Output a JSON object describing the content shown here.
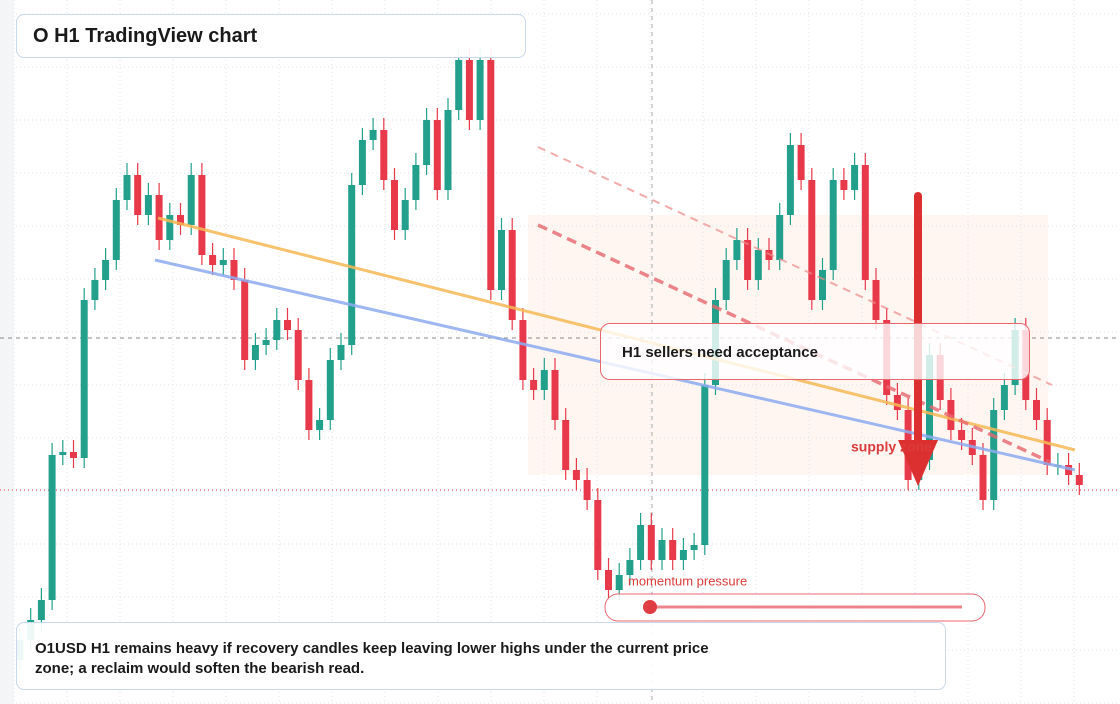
{
  "chart_data": {
    "type": "candlestick",
    "title": "O H1 TradingView chart",
    "annotations": {
      "callout": "H1 sellers need acceptance",
      "zone": "supply zone",
      "momentum": "momentum pressure",
      "note": "O1USD H1 remains heavy if recovery candles keep leaving lower highs under the current price zone; a reclaim would soften the bearish read."
    },
    "up_color": "#22a08c",
    "down_color": "#e8394a",
    "ylim": [
      0,
      704
    ],
    "candles": [
      [
        44,
        76,
        34,
        64
      ],
      [
        64,
        96,
        54,
        84
      ],
      [
        84,
        116,
        74,
        104
      ],
      [
        104,
        261,
        94,
        249
      ],
      [
        249,
        264,
        239,
        252
      ],
      [
        252,
        264,
        236,
        246
      ],
      [
        246,
        416,
        236,
        404
      ],
      [
        404,
        436,
        394,
        424
      ],
      [
        424,
        456,
        414,
        444
      ],
      [
        444,
        516,
        434,
        504
      ],
      [
        504,
        541,
        494,
        529
      ],
      [
        529,
        541,
        479,
        489
      ],
      [
        489,
        521,
        479,
        509
      ],
      [
        509,
        521,
        454,
        464
      ],
      [
        464,
        501,
        454,
        489
      ],
      [
        489,
        501,
        469,
        479
      ],
      [
        479,
        541,
        469,
        529
      ],
      [
        529,
        541,
        439,
        449
      ],
      [
        449,
        461,
        429,
        439
      ],
      [
        439,
        456,
        429,
        444
      ],
      [
        444,
        456,
        414,
        424
      ],
      [
        424,
        436,
        334,
        344
      ],
      [
        344,
        371,
        334,
        359
      ],
      [
        359,
        376,
        349,
        364
      ],
      [
        364,
        396,
        354,
        384
      ],
      [
        384,
        396,
        364,
        374
      ],
      [
        374,
        386,
        314,
        324
      ],
      [
        324,
        336,
        264,
        274
      ],
      [
        274,
        296,
        264,
        284
      ],
      [
        284,
        356,
        274,
        344
      ],
      [
        344,
        371,
        334,
        359
      ],
      [
        359,
        531,
        349,
        519
      ],
      [
        519,
        576,
        509,
        564
      ],
      [
        564,
        586,
        554,
        574
      ],
      [
        574,
        586,
        514,
        524
      ],
      [
        524,
        536,
        464,
        474
      ],
      [
        474,
        516,
        464,
        504
      ],
      [
        504,
        551,
        494,
        539
      ],
      [
        539,
        596,
        529,
        584
      ],
      [
        584,
        596,
        504,
        514
      ],
      [
        514,
        606,
        504,
        594
      ],
      [
        594,
        656,
        584,
        644
      ],
      [
        644,
        656,
        574,
        584
      ],
      [
        584,
        656,
        574,
        644
      ],
      [
        644,
        656,
        404,
        414
      ],
      [
        414,
        486,
        404,
        474
      ],
      [
        474,
        486,
        374,
        384
      ],
      [
        384,
        396,
        314,
        324
      ],
      [
        324,
        336,
        304,
        314
      ],
      [
        314,
        346,
        304,
        334
      ],
      [
        334,
        346,
        274,
        284
      ],
      [
        284,
        296,
        224,
        234
      ],
      [
        234,
        246,
        214,
        224
      ],
      [
        224,
        236,
        194,
        204
      ],
      [
        204,
        216,
        124,
        134
      ],
      [
        134,
        146,
        104,
        114
      ],
      [
        114,
        141,
        104,
        129
      ],
      [
        129,
        156,
        119,
        144
      ],
      [
        144,
        191,
        134,
        179
      ],
      [
        179,
        191,
        134,
        144
      ],
      [
        144,
        176,
        134,
        164
      ],
      [
        164,
        176,
        134,
        144
      ],
      [
        144,
        166,
        134,
        154
      ],
      [
        154,
        171,
        144,
        159
      ],
      [
        159,
        331,
        149,
        319
      ],
      [
        319,
        416,
        309,
        404
      ],
      [
        404,
        456,
        394,
        444
      ],
      [
        444,
        476,
        434,
        464
      ],
      [
        464,
        476,
        414,
        424
      ],
      [
        424,
        466,
        414,
        454
      ],
      [
        454,
        466,
        434,
        444
      ],
      [
        444,
        501,
        434,
        489
      ],
      [
        489,
        571,
        479,
        559
      ],
      [
        559,
        571,
        514,
        524
      ],
      [
        524,
        536,
        394,
        404
      ],
      [
        404,
        446,
        394,
        434
      ],
      [
        434,
        536,
        424,
        524
      ],
      [
        524,
        536,
        504,
        514
      ],
      [
        514,
        551,
        504,
        539
      ],
      [
        539,
        551,
        414,
        424
      ],
      [
        424,
        436,
        374,
        384
      ],
      [
        384,
        396,
        299,
        309
      ],
      [
        309,
        321,
        284,
        294
      ],
      [
        294,
        306,
        214,
        224
      ],
      [
        224,
        256,
        214,
        244
      ],
      [
        244,
        361,
        234,
        349
      ],
      [
        349,
        361,
        294,
        304
      ],
      [
        304,
        316,
        264,
        274
      ],
      [
        274,
        286,
        254,
        264
      ],
      [
        264,
        276,
        239,
        249
      ],
      [
        249,
        261,
        194,
        204
      ],
      [
        204,
        306,
        194,
        294
      ],
      [
        294,
        331,
        284,
        319
      ],
      [
        319,
        386,
        309,
        374
      ],
      [
        374,
        386,
        294,
        304
      ],
      [
        304,
        316,
        274,
        284
      ],
      [
        284,
        296,
        229,
        239
      ],
      [
        239,
        251,
        229,
        239
      ],
      [
        239,
        251,
        219,
        229
      ],
      [
        229,
        241,
        209,
        219
      ]
    ]
  }
}
